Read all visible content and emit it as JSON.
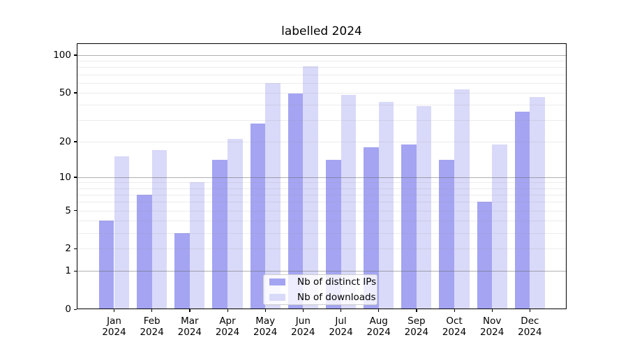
{
  "title": "labelled 2024",
  "legend": {
    "items": [
      {
        "key": "ips",
        "label": "Nb of distinct IPs",
        "color": "#a4a4f2"
      },
      {
        "key": "downloads",
        "label": "Nb of downloads",
        "color": "#d9d9f9"
      }
    ]
  },
  "axes": {
    "yticks": [
      {
        "value": 100,
        "label": "100"
      },
      {
        "value": 50,
        "label": "50"
      },
      {
        "value": 20,
        "label": "20"
      },
      {
        "value": 10,
        "label": "10"
      },
      {
        "value": 5,
        "label": "5"
      },
      {
        "value": 2,
        "label": "2"
      },
      {
        "value": 1,
        "label": "1"
      },
      {
        "value": 0,
        "label": "0"
      }
    ]
  },
  "chart_data": {
    "type": "bar",
    "title": "labelled 2024",
    "categories": [
      "Jan 2024",
      "Feb 2024",
      "Mar 2024",
      "Apr 2024",
      "May 2024",
      "Jun 2024",
      "Jul 2024",
      "Aug 2024",
      "Sep 2024",
      "Oct 2024",
      "Nov 2024",
      "Dec 2024"
    ],
    "series": [
      {
        "key": "ips",
        "name": "Nb of distinct IPs",
        "color": "#a4a4f2",
        "values": [
          4,
          7,
          3,
          14,
          28,
          49,
          14,
          18,
          19,
          14,
          6,
          35
        ]
      },
      {
        "key": "downloads",
        "name": "Nb of downloads",
        "color": "#d9d9f9",
        "values": [
          15,
          17,
          9,
          21,
          60,
          81,
          48,
          42,
          39,
          53,
          19,
          46
        ]
      }
    ],
    "xlabel": "",
    "ylabel": "",
    "yscale": "log10(value+1)",
    "ylim": [
      0,
      124
    ],
    "ytick_values": [
      0,
      1,
      2,
      5,
      10,
      20,
      50,
      100
    ],
    "gridlines": {
      "major": [
        1,
        10,
        100
      ],
      "minor": [
        2,
        3,
        4,
        5,
        6,
        7,
        8,
        9,
        20,
        30,
        40,
        50,
        60,
        70,
        80,
        90
      ]
    },
    "grid": "horizontal",
    "legend_position": "inside lower-center",
    "colors": {
      "grid_major": "#b0b0b0",
      "grid_minor": "#ebebeb",
      "spine": "#000000"
    }
  }
}
